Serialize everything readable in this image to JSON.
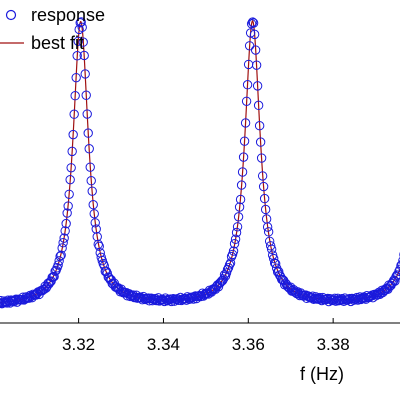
{
  "chart_data": {
    "type": "line",
    "title": "",
    "xlabel": "f (Hz)",
    "ylabel": "",
    "xlim": [
      3.301,
      3.4
    ],
    "ylim": [
      0.0,
      1.0
    ],
    "xticks": [
      "3.32",
      "3.34",
      "3.36",
      "3.38"
    ],
    "xtick_values": [
      3.32,
      3.34,
      3.36,
      3.38
    ],
    "grid": false,
    "legend_position": "top-left",
    "colors": {
      "response": "#1a1adc",
      "best_fit": "#a01010"
    },
    "model": {
      "baseline": 0.05,
      "peaks": [
        {
          "center": 3.3205,
          "amplitude": 0.88,
          "half_width": 0.0022
        },
        {
          "center": 3.361,
          "amplitude": 0.88,
          "half_width": 0.0022
        },
        {
          "center": 3.4015,
          "amplitude": 0.88,
          "half_width": 0.0022
        }
      ]
    },
    "sampling": {
      "x_start": 3.301,
      "x_end": 3.4,
      "count": 420
    },
    "series": [
      {
        "name": "response",
        "marker": "open-circle"
      },
      {
        "name": "best fit",
        "marker": "line"
      }
    ]
  }
}
